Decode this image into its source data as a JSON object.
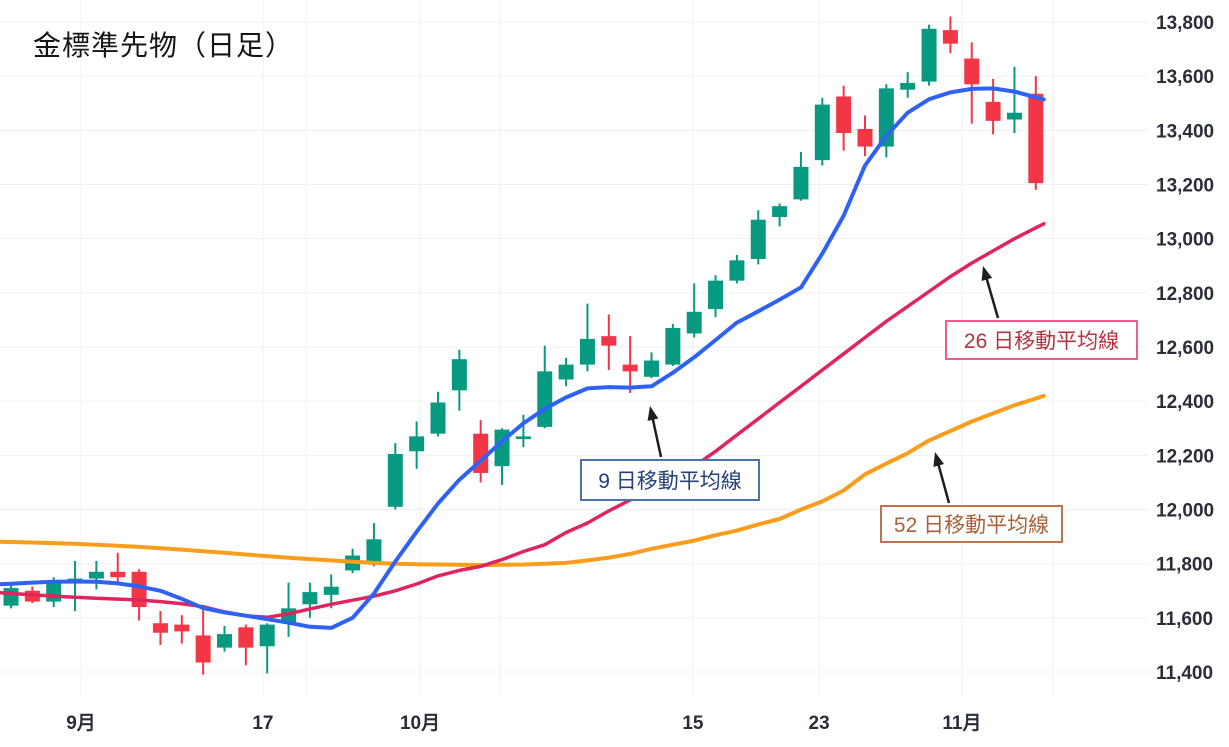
{
  "title": "金標準先物（日足）",
  "colors": {
    "background": "#ffffff",
    "grid": "#f0f0f0",
    "candle_up": "#089981",
    "candle_down": "#f23645",
    "ma9": "#2f62f4",
    "ma26": "#e0245e",
    "ma52": "#f99d1c",
    "axis_text": "#2a2e39",
    "title_text": "#161616",
    "arrow": "#1e1e1e"
  },
  "annotations": {
    "ma9": {
      "label": "9 日移動平均線",
      "border_color": "#4a72ad",
      "text_color": "#24407a"
    },
    "ma26": {
      "label": "26 日移動平均線",
      "border_color": "#ee5c8b",
      "text_color": "#b13440"
    },
    "ma52": {
      "label": "52 日移動平均線",
      "border_color": "#c0734f",
      "text_color": "#aa6137"
    }
  },
  "chart_data": {
    "type": "candlestick",
    "title": "金標準先物（日足）",
    "grid": true,
    "legend_position": "annotation boxes on chart with arrows",
    "y_axis": {
      "min": 11400,
      "max": 13800,
      "tick_interval": 200,
      "ticks": [
        {
          "value": 13800,
          "label": "13,800"
        },
        {
          "value": 13600,
          "label": "13,600"
        },
        {
          "value": 13400,
          "label": "13,400"
        },
        {
          "value": 13200,
          "label": "13,200"
        },
        {
          "value": 13000,
          "label": "13,000"
        },
        {
          "value": 12800,
          "label": "12,800"
        },
        {
          "value": 12600,
          "label": "12,600"
        },
        {
          "value": 12400,
          "label": "12,400"
        },
        {
          "value": 12200,
          "label": "12,200"
        },
        {
          "value": 12000,
          "label": "12,000"
        },
        {
          "value": 11800,
          "label": "11,800"
        },
        {
          "value": 11600,
          "label": "11,600"
        },
        {
          "value": 11400,
          "label": "11,400"
        }
      ]
    },
    "x_axis": {
      "ticks": [
        {
          "label": "9月",
          "candle_index": 3.28
        },
        {
          "label": "17",
          "candle_index": 11.8
        },
        {
          "label": "10月",
          "candle_index": 19.16
        },
        {
          "label": "15",
          "candle_index": 31.94
        },
        {
          "label": "23",
          "candle_index": 37.85
        },
        {
          "label": "11月",
          "candle_index": 44.54
        }
      ],
      "extra_gridline_indices": [
        13.82,
        22.9,
        48.81
      ]
    },
    "candles_ohlc": [
      [
        11645,
        11730,
        11635,
        11710
      ],
      [
        11700,
        11715,
        11655,
        11660
      ],
      [
        11660,
        11750,
        11640,
        11730
      ],
      [
        11738,
        11810,
        11625,
        11745
      ],
      [
        11745,
        11810,
        11705,
        11770
      ],
      [
        11770,
        11840,
        11730,
        11750
      ],
      [
        11770,
        11780,
        11590,
        11640
      ],
      [
        11580,
        11625,
        11500,
        11545
      ],
      [
        11575,
        11610,
        11505,
        11550
      ],
      [
        11535,
        11630,
        11390,
        11435
      ],
      [
        11490,
        11570,
        11475,
        11540
      ],
      [
        11565,
        11575,
        11425,
        11490
      ],
      [
        11495,
        11580,
        11395,
        11575
      ],
      [
        11580,
        11730,
        11530,
        11635
      ],
      [
        11650,
        11730,
        11600,
        11695
      ],
      [
        11685,
        11760,
        11635,
        11715
      ],
      [
        11775,
        11855,
        11765,
        11830
      ],
      [
        11800,
        11950,
        11790,
        11890
      ],
      [
        12010,
        12245,
        12000,
        12205
      ],
      [
        12215,
        12325,
        12150,
        12270
      ],
      [
        12280,
        12435,
        12270,
        12395
      ],
      [
        12440,
        12590,
        12365,
        12555
      ],
      [
        12280,
        12330,
        12100,
        12135
      ],
      [
        12160,
        12300,
        12090,
        12295
      ],
      [
        12260,
        12350,
        12230,
        12270
      ],
      [
        12305,
        12605,
        12300,
        12510
      ],
      [
        12480,
        12560,
        12455,
        12535
      ],
      [
        12535,
        12760,
        12510,
        12630
      ],
      [
        12640,
        12720,
        12515,
        12605
      ],
      [
        12535,
        12640,
        12430,
        12510
      ],
      [
        12490,
        12580,
        12485,
        12550
      ],
      [
        12535,
        12685,
        12530,
        12670
      ],
      [
        12650,
        12835,
        12635,
        12730
      ],
      [
        12740,
        12865,
        12710,
        12845
      ],
      [
        12845,
        12940,
        12835,
        12920
      ],
      [
        12925,
        13105,
        12905,
        13070
      ],
      [
        13080,
        13130,
        13045,
        13120
      ],
      [
        13145,
        13320,
        13140,
        13265
      ],
      [
        13290,
        13520,
        13270,
        13495
      ],
      [
        13525,
        13565,
        13325,
        13390
      ],
      [
        13405,
        13455,
        13305,
        13340
      ],
      [
        13340,
        13570,
        13300,
        13555
      ],
      [
        13550,
        13615,
        13520,
        13575
      ],
      [
        13580,
        13790,
        13565,
        13775
      ],
      [
        13770,
        13820,
        13685,
        13720
      ],
      [
        13665,
        13725,
        13425,
        13570
      ],
      [
        13505,
        13590,
        13385,
        13435
      ],
      [
        13440,
        13635,
        13390,
        13465
      ],
      [
        13535,
        13600,
        13180,
        13205
      ]
    ],
    "series": [
      {
        "name": "9日移動平均線",
        "color": "#2f62f4",
        "values": [
          11726,
          11730,
          11733,
          11734,
          11733,
          11727,
          11716,
          11700,
          11670,
          11636,
          11620,
          11608,
          11595,
          11582,
          11567,
          11563,
          11600,
          11690,
          11808,
          11918,
          12022,
          12110,
          12180,
          12252,
          12318,
          12372,
          12414,
          12447,
          12452,
          12450,
          12455,
          12505,
          12562,
          12626,
          12690,
          12732,
          12775,
          12820,
          12945,
          13085,
          13270,
          13380,
          13465,
          13515,
          13540,
          13553,
          13555,
          13543,
          13522
        ]
      },
      {
        "name": "26日移動平均線",
        "color": "#e0245e",
        "values": [
          11690,
          11685,
          11680,
          11676,
          11672,
          11669,
          11666,
          11660,
          11652,
          11641,
          11622,
          11607,
          11602,
          11615,
          11633,
          11650,
          11665,
          11680,
          11700,
          11725,
          11755,
          11775,
          11790,
          11815,
          11845,
          11870,
          11915,
          11950,
          11995,
          12035,
          12075,
          12110,
          12160,
          12215,
          12275,
          12335,
          12395,
          12455,
          12515,
          12575,
          12635,
          12695,
          12750,
          12805,
          12860,
          12910,
          12955,
          13000,
          13040
        ]
      },
      {
        "name": "52日移動平均線",
        "color": "#f99d1c",
        "values": [
          11880,
          11878,
          11876,
          11873,
          11870,
          11866,
          11862,
          11857,
          11852,
          11846,
          11840,
          11834,
          11828,
          11822,
          11817,
          11812,
          11807,
          11803,
          11800,
          11798,
          11797,
          11796,
          11795,
          11796,
          11797,
          11800,
          11803,
          11812,
          11822,
          11836,
          11855,
          11870,
          11885,
          11905,
          11922,
          11945,
          11965,
          12000,
          12030,
          12070,
          12130,
          12170,
          12208,
          12255,
          12290,
          12325,
          12355,
          12385,
          12410
        ]
      }
    ]
  }
}
